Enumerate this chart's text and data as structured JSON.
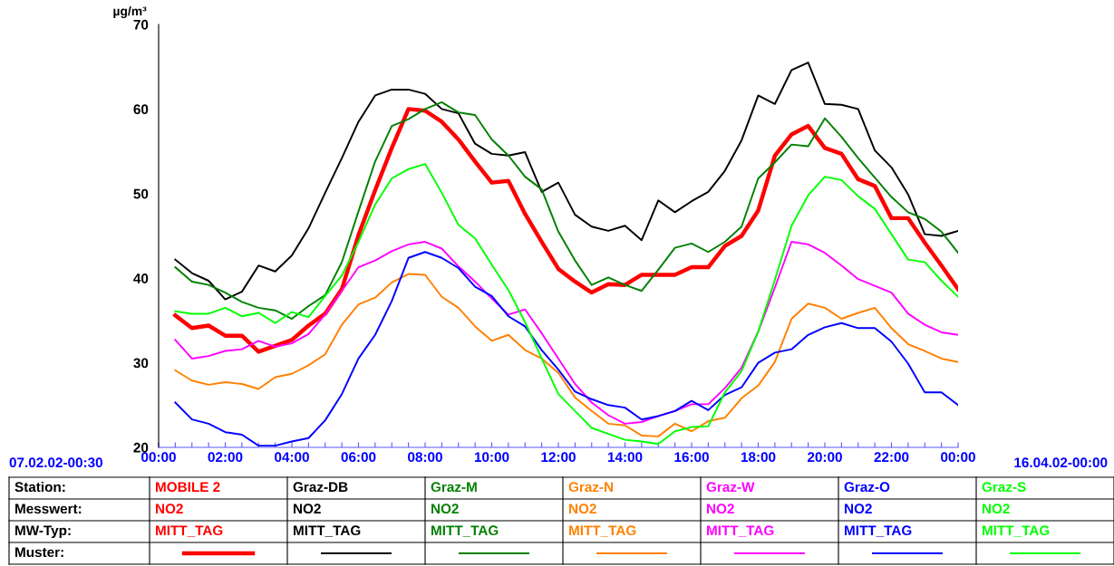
{
  "chart_data": {
    "type": "line",
    "ylabel": "µg/m³",
    "x": [
      0.5,
      1,
      1.5,
      2,
      2.5,
      3,
      3.5,
      4,
      4.5,
      5,
      5.5,
      6,
      6.5,
      7,
      7.5,
      8,
      8.5,
      9,
      9.5,
      10,
      10.5,
      11,
      11.5,
      12,
      12.5,
      13,
      13.5,
      14,
      14.5,
      15,
      15.5,
      16,
      16.5,
      17,
      17.5,
      18,
      18.5,
      19,
      19.5,
      20,
      20.5,
      21,
      21.5,
      22,
      22.5,
      23,
      23.5,
      24
    ],
    "series": [
      {
        "name": "MOBILE 2",
        "color": "#ff0000",
        "values": [
          35.6,
          34.1,
          34.4,
          33.2,
          33.2,
          31.3,
          32.0,
          32.7,
          34.4,
          35.8,
          38.7,
          45.1,
          50.4,
          55.4,
          60.0,
          59.8,
          58.5,
          56.4,
          53.8,
          51.3,
          51.5,
          47.6,
          44.3,
          41.1,
          39.6,
          38.3,
          39.3,
          39.2,
          40.4,
          40.4,
          40.4,
          41.3,
          41.3,
          43.8,
          45.0,
          48.0,
          54.5,
          57.0,
          58.0,
          55.4,
          54.7,
          51.7,
          50.9,
          47.1,
          47.1,
          44.2,
          41.5,
          38.7
        ]
      },
      {
        "name": "Graz-DB",
        "color": "#000000",
        "values": [
          42.2,
          40.6,
          39.7,
          37.5,
          38.4,
          41.5,
          40.8,
          42.7,
          45.9,
          50.1,
          54.2,
          58.5,
          61.6,
          62.3,
          62.3,
          61.8,
          60.0,
          59.5,
          55.9,
          54.7,
          54.5,
          54.9,
          50.2,
          51.3,
          47.5,
          46.1,
          45.6,
          46.2,
          44.5,
          49.2,
          47.8,
          49.1,
          50.2,
          52.7,
          56.3,
          61.6,
          60.6,
          64.6,
          65.5,
          60.6,
          60.5,
          60.0,
          55.1,
          53.1,
          49.9,
          45.2,
          45.0,
          45.6
        ]
      },
      {
        "name": "Graz-M",
        "color": "#008000",
        "values": [
          41.3,
          39.6,
          39.2,
          38.3,
          37.2,
          36.5,
          36.2,
          35.2,
          36.7,
          38.0,
          41.9,
          47.9,
          53.8,
          58.0,
          58.8,
          60.0,
          60.8,
          59.6,
          59.3,
          56.4,
          54.5,
          52.0,
          50.5,
          45.5,
          42.1,
          39.2,
          40.1,
          39.2,
          38.5,
          41.0,
          43.6,
          44.1,
          43.1,
          44.3,
          46.1,
          51.8,
          53.7,
          55.8,
          55.6,
          58.9,
          56.7,
          54.2,
          51.9,
          49.6,
          47.8,
          47.0,
          45.5,
          43.0
        ]
      },
      {
        "name": "Graz-N",
        "color": "#ff8000",
        "values": [
          29.1,
          27.9,
          27.4,
          27.7,
          27.5,
          26.9,
          28.3,
          28.7,
          29.7,
          31.0,
          34.5,
          36.9,
          37.7,
          39.5,
          40.5,
          40.4,
          37.8,
          36.5,
          34.3,
          32.6,
          33.3,
          31.5,
          30.5,
          28.8,
          25.9,
          24.3,
          22.8,
          22.6,
          21.4,
          21.3,
          22.8,
          21.9,
          23.1,
          23.5,
          25.8,
          27.3,
          30.1,
          35.2,
          37.0,
          36.5,
          35.2,
          35.9,
          36.5,
          34.1,
          32.2,
          31.4,
          30.5,
          30.1
        ]
      },
      {
        "name": "Graz-W",
        "color": "#ff00ff",
        "values": [
          32.7,
          30.5,
          30.8,
          31.4,
          31.6,
          32.6,
          31.9,
          32.3,
          33.4,
          35.7,
          38.5,
          41.3,
          42.1,
          43.2,
          44.0,
          44.3,
          43.5,
          41.4,
          39.6,
          37.6,
          35.7,
          36.3,
          33.5,
          30.5,
          27.5,
          25.3,
          23.8,
          22.8,
          23.0,
          23.7,
          24.3,
          25.1,
          25.1,
          27.0,
          29.4,
          33.7,
          38.9,
          44.3,
          44.0,
          43.0,
          41.5,
          39.9,
          39.1,
          38.3,
          35.8,
          34.5,
          33.6,
          33.3
        ]
      },
      {
        "name": "Graz-O",
        "color": "#0000ff",
        "values": [
          25.3,
          23.3,
          22.8,
          21.8,
          21.5,
          20.2,
          20.2,
          20.7,
          21.1,
          23.2,
          26.3,
          30.5,
          33.3,
          37.3,
          42.4,
          43.1,
          42.4,
          41.2,
          39.0,
          37.9,
          35.5,
          34.3,
          31.5,
          29.2,
          26.6,
          25.7,
          25.0,
          24.7,
          23.3,
          23.7,
          24.3,
          25.5,
          24.4,
          26.2,
          27.1,
          30.0,
          31.2,
          31.6,
          33.3,
          34.2,
          34.7,
          34.1,
          34.1,
          32.5,
          29.9,
          26.5,
          26.5,
          25.0
        ]
      },
      {
        "name": "Graz-S",
        "color": "#00ff00",
        "values": [
          36.1,
          35.8,
          35.8,
          36.5,
          35.5,
          35.9,
          34.7,
          36.0,
          35.4,
          37.9,
          40.3,
          44.3,
          48.7,
          51.8,
          52.9,
          53.5,
          50.1,
          46.3,
          44.7,
          41.6,
          38.6,
          34.8,
          30.5,
          26.3,
          24.3,
          22.3,
          21.6,
          20.9,
          20.7,
          20.4,
          21.9,
          22.4,
          22.5,
          26.5,
          29.0,
          33.7,
          39.8,
          46.2,
          49.8,
          52.0,
          51.6,
          49.7,
          48.2,
          45.2,
          42.2,
          41.9,
          39.7,
          37.8
        ]
      }
    ],
    "xlim": [
      0,
      24
    ],
    "xticks": [
      {
        "value": 0,
        "label": "00:00"
      },
      {
        "value": 0.5,
        "label": null
      },
      {
        "value": 1,
        "label": null
      },
      {
        "value": 1.5,
        "label": null
      },
      {
        "value": 2,
        "label": "02:00"
      },
      {
        "value": 2.5,
        "label": null
      },
      {
        "value": 3,
        "label": null
      },
      {
        "value": 3.5,
        "label": null
      },
      {
        "value": 4,
        "label": "04:00"
      },
      {
        "value": 4.5,
        "label": null
      },
      {
        "value": 5,
        "label": null
      },
      {
        "value": 5.5,
        "label": null
      },
      {
        "value": 6,
        "label": "06:00"
      },
      {
        "value": 6.5,
        "label": null
      },
      {
        "value": 7,
        "label": null
      },
      {
        "value": 7.5,
        "label": null
      },
      {
        "value": 8,
        "label": "08:00"
      },
      {
        "value": 8.5,
        "label": null
      },
      {
        "value": 9,
        "label": null
      },
      {
        "value": 9.5,
        "label": null
      },
      {
        "value": 10,
        "label": "10:00"
      },
      {
        "value": 10.5,
        "label": null
      },
      {
        "value": 11,
        "label": null
      },
      {
        "value": 11.5,
        "label": null
      },
      {
        "value": 12,
        "label": "12:00"
      },
      {
        "value": 12.5,
        "label": null
      },
      {
        "value": 13,
        "label": null
      },
      {
        "value": 13.5,
        "label": null
      },
      {
        "value": 14,
        "label": "14:00"
      },
      {
        "value": 14.5,
        "label": null
      },
      {
        "value": 15,
        "label": null
      },
      {
        "value": 15.5,
        "label": null
      },
      {
        "value": 16,
        "label": "16:00"
      },
      {
        "value": 16.5,
        "label": null
      },
      {
        "value": 17,
        "label": null
      },
      {
        "value": 17.5,
        "label": null
      },
      {
        "value": 18,
        "label": "18:00"
      },
      {
        "value": 18.5,
        "label": null
      },
      {
        "value": 19,
        "label": null
      },
      {
        "value": 19.5,
        "label": null
      },
      {
        "value": 20,
        "label": "20:00"
      },
      {
        "value": 20.5,
        "label": null
      },
      {
        "value": 21,
        "label": null
      },
      {
        "value": 21.5,
        "label": null
      },
      {
        "value": 22,
        "label": "22:00"
      },
      {
        "value": 22.5,
        "label": null
      },
      {
        "value": 23,
        "label": null
      },
      {
        "value": 23.5,
        "label": null
      },
      {
        "value": 24,
        "label": "00:00"
      }
    ],
    "ylim": [
      20,
      70
    ],
    "yticks": [
      20,
      30,
      40,
      50,
      60,
      70
    ],
    "grid": false,
    "legend": "bottom",
    "marker": "none",
    "line_style": "solid",
    "annotations": [
      "07.02.02-00:30",
      "16.04.02-00:00",
      "Station:",
      "Messwert:",
      "MW-Typ:",
      "Muster:",
      "NO2",
      "MITT_TAG",
      "NO2",
      "MITT_TAG",
      "NO2",
      "MITT_TAG",
      "NO2",
      "MITT_TAG",
      "NO2",
      "MITT_TAG",
      "NO2",
      "MITT_TAG",
      "NO2",
      "MITT_TAG"
    ]
  }
}
